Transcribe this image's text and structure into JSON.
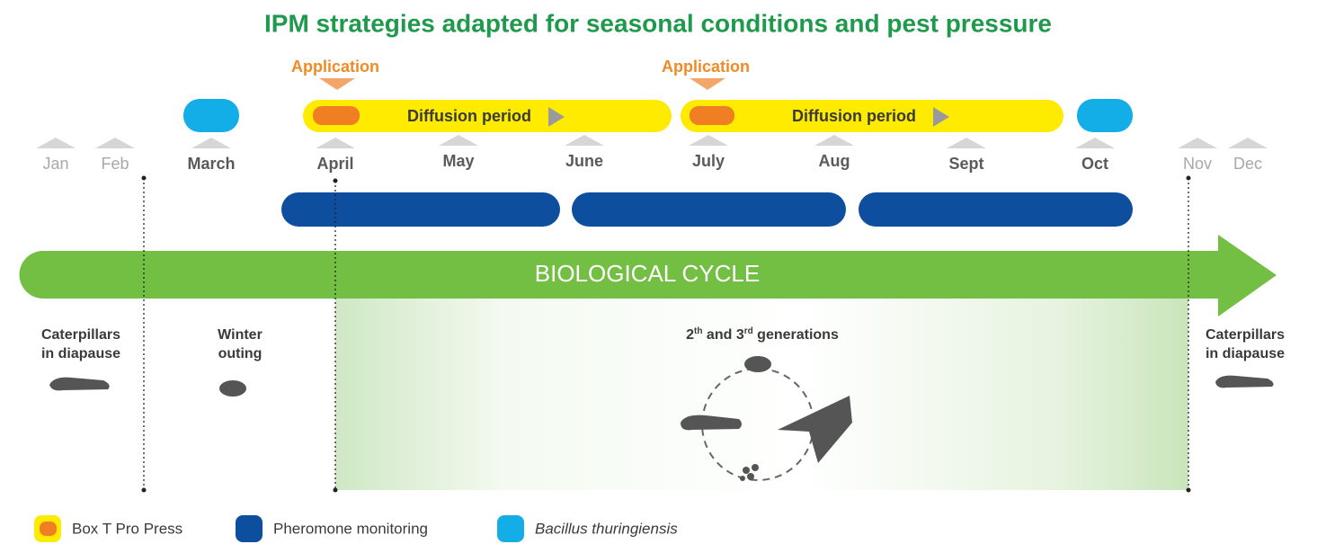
{
  "title": "IPM strategies adapted for seasonal conditions and pest pressure",
  "applications": [
    "Application",
    "Application"
  ],
  "diffusion": [
    "Diffusion period",
    "Diffusion period"
  ],
  "months": [
    "Jan",
    "Feb",
    "March",
    "April",
    "May",
    "June",
    "July",
    "Aug",
    "Sept",
    "Oct",
    "Nov",
    "Dec"
  ],
  "cycle": "BIOLOGICAL CYCLE",
  "stages": {
    "left": [
      "Caterpillars",
      "in diapause"
    ],
    "winter": [
      "Winter",
      "outing"
    ],
    "generations": [
      "2",
      "th",
      " and 3",
      "rd",
      " generations"
    ],
    "right": [
      "Caterpillars",
      "in diapause"
    ]
  },
  "legend": [
    "Box T Pro Press",
    "Pheromone monitoring",
    "Bacillus thuringiensis"
  ]
}
